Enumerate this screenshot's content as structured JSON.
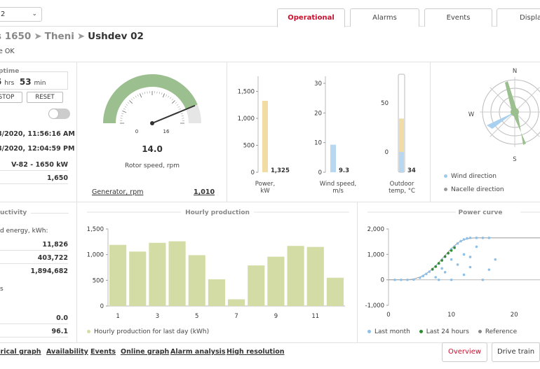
{
  "header": {
    "site_value": "2",
    "tabs": [
      {
        "label": "Operational",
        "active": true
      },
      {
        "label": "Alarms",
        "active": false
      },
      {
        "label": "Events",
        "active": false
      },
      {
        "label": "Displa",
        "active": false
      }
    ],
    "breadcrumb": {
      "a": "s 1650",
      "b": "Theni",
      "c": "Ushdev 02",
      "sep": "➤"
    },
    "state_text": "ne OK"
  },
  "uptime": {
    "title": "ptime",
    "hours": "5",
    "hours_unit": "hrs",
    "minutes": "53",
    "minutes_unit": "min",
    "stop_label": "STOP",
    "reset_label": "RESET"
  },
  "info": {
    "date1": "8/2020, 11:56:16 AM",
    "date2": "8/2020, 12:04:59 PM",
    "model": "V-82 - 1650 kW",
    "rated": "1,650"
  },
  "gauge": {
    "min_label": "0",
    "max_label": "16",
    "value_text": "14.0",
    "value": 14.0,
    "max": 16,
    "caption": "Rotor speed, rpm",
    "generator_label": "Generator, rpm",
    "generator_value": "1,010"
  },
  "bars": {
    "power": {
      "ticks": [
        "1,500",
        "1,000",
        "500",
        "0"
      ],
      "value_text": "1,325",
      "value": 1325,
      "max": 1650,
      "label1": "Power,",
      "label2": "kW"
    },
    "wind": {
      "ticks": [
        "30",
        "20",
        "10",
        "0"
      ],
      "value_text": "9.3",
      "value": 9.3,
      "max": 30,
      "label1": "Wind speed,",
      "label2": "m/s"
    },
    "temp": {
      "ticks": [
        "50",
        "0"
      ],
      "value_text": "34",
      "value": 34,
      "label1": "Outdoor",
      "label2": "temp, °C"
    }
  },
  "compass": {
    "n": "N",
    "w": "W",
    "s": "S",
    "legend_wind": "Wind direction",
    "legend_nacelle": "Nacelle direction"
  },
  "productivity": {
    "title": "uctivity",
    "energy_label": "d energy, kWh:",
    "v1": "11,826",
    "v2": "403,722",
    "v3": "1,894,682",
    "s_label": "s",
    "v4": "0.0",
    "v5": "96.1"
  },
  "chart_data": [
    {
      "type": "bar",
      "title": "Hourly production",
      "categories": [
        "1",
        "2",
        "3",
        "4",
        "5",
        "6",
        "7",
        "8",
        "9",
        "10",
        "11",
        "12"
      ],
      "values": [
        1190,
        1060,
        1230,
        1260,
        990,
        520,
        130,
        790,
        960,
        1170,
        1150,
        550
      ],
      "ylim": [
        0,
        1500
      ],
      "yticks": [
        "1,500",
        "1,000",
        "500",
        "0"
      ],
      "xticks": [
        "1",
        "3",
        "5",
        "7",
        "9",
        "11"
      ],
      "legend": "Hourly production for last day (kWh)",
      "color": "#d4dca6"
    },
    {
      "type": "scatter",
      "title": "Power curve",
      "xlim": [
        0,
        25
      ],
      "ylim": [
        -1000,
        2000
      ],
      "yticks": [
        "2,000",
        "1,000",
        "0",
        "-1,000"
      ],
      "xticks": [
        "0",
        "10",
        "20"
      ],
      "reference": [
        [
          0,
          0
        ],
        [
          3,
          0
        ],
        [
          4,
          30
        ],
        [
          5,
          110
        ],
        [
          6,
          240
        ],
        [
          7,
          430
        ],
        [
          8,
          680
        ],
        [
          9,
          960
        ],
        [
          10,
          1230
        ],
        [
          11,
          1450
        ],
        [
          12,
          1580
        ],
        [
          13,
          1640
        ],
        [
          14,
          1650
        ],
        [
          25,
          1650
        ]
      ],
      "last_month": [
        [
          1,
          0
        ],
        [
          2,
          0
        ],
        [
          3,
          0
        ],
        [
          4,
          10
        ],
        [
          5,
          80
        ],
        [
          5.5,
          150
        ],
        [
          6,
          230
        ],
        [
          6.5,
          320
        ],
        [
          7,
          400
        ],
        [
          7.5,
          530
        ],
        [
          8,
          640
        ],
        [
          8.5,
          790
        ],
        [
          9,
          900
        ],
        [
          9.5,
          1040
        ],
        [
          10,
          1200
        ],
        [
          10.5,
          1310
        ],
        [
          11,
          1430
        ],
        [
          11.5,
          1520
        ],
        [
          12,
          1590
        ],
        [
          12.5,
          1630
        ],
        [
          13,
          1650
        ],
        [
          14,
          1650
        ],
        [
          15,
          1650
        ],
        [
          16,
          1650
        ],
        [
          7.5,
          100
        ],
        [
          8.5,
          450
        ],
        [
          9,
          300
        ],
        [
          10,
          800
        ],
        [
          11,
          600
        ],
        [
          12,
          1000
        ],
        [
          13,
          500
        ],
        [
          14,
          1300
        ],
        [
          15,
          0
        ],
        [
          16,
          400
        ],
        [
          8,
          0
        ],
        [
          10,
          0
        ],
        [
          12,
          200
        ],
        [
          13,
          900
        ],
        [
          17,
          800
        ]
      ],
      "last_24h": [
        [
          7,
          420
        ],
        [
          7.5,
          520
        ],
        [
          8,
          650
        ],
        [
          8.5,
          760
        ],
        [
          9,
          920
        ],
        [
          9.5,
          1050
        ],
        [
          10,
          1150
        ],
        [
          10.5,
          1260
        ]
      ],
      "legend": [
        "Last month",
        "Last 24 hours",
        "Reference"
      ],
      "colors": {
        "last_month": "#8fc0e8",
        "last_24h": "#2e8b2e",
        "reference": "#999999"
      }
    }
  ],
  "bottom": {
    "links": [
      "orical graph",
      "Availability",
      "Events",
      "Online graph",
      "Alarm analysis",
      "High resolution"
    ],
    "overview_label": "Overview",
    "drive_label": "Drive train"
  }
}
